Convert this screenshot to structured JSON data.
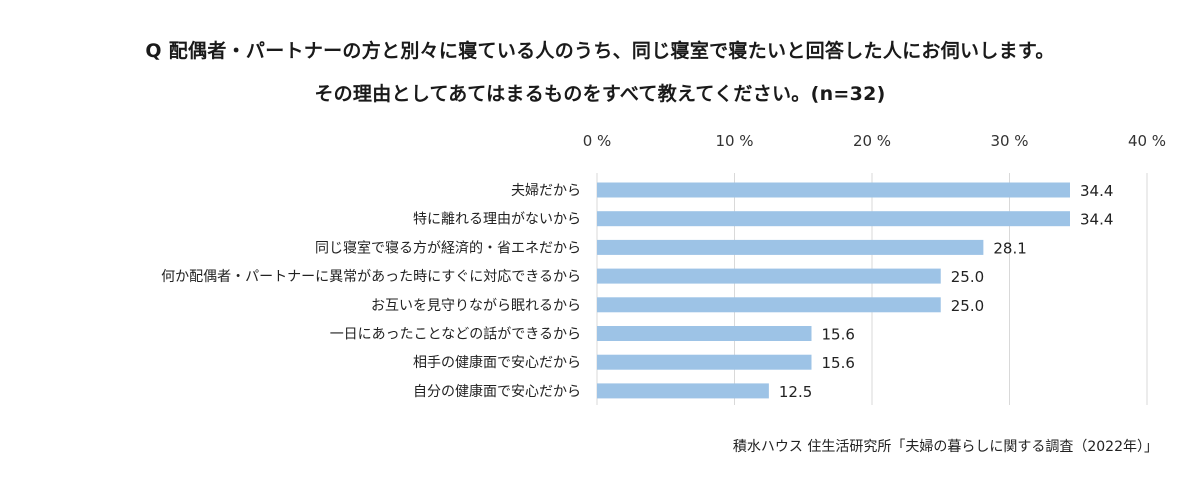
{
  "title": {
    "line1": "Q 配偶者・パートナーの方と別々に寝ている人のうち、同じ寝室で寝たいと回答した人にお伺いします。",
    "line2": "その理由としてあてはまるものをすべて教えてください。(n=32)"
  },
  "source": "積水ハウス 住生活研究所「夫婦の暮らしに関する調査（2022年）」",
  "chart_data": {
    "type": "bar",
    "orientation": "horizontal",
    "categories": [
      "夫婦だから",
      "特に離れる理由がないから",
      "同じ寝室で寝る方が経済的・省エネだから",
      "何か配偶者・パートナーに異常があった時にすぐに対応できるから",
      "お互いを見守りながら眠れるから",
      "一日にあったことなどの話ができるから",
      "相手の健康面で安心だから",
      "自分の健康面で安心だから"
    ],
    "values": [
      34.4,
      34.4,
      28.1,
      25.0,
      25.0,
      15.6,
      15.6,
      12.5
    ],
    "value_labels": [
      "34.4",
      "34.4",
      "28.1",
      "25.0",
      "25.0",
      "15.6",
      "15.6",
      "12.5"
    ],
    "xlim": [
      0,
      40
    ],
    "ticks": [
      0,
      10,
      20,
      30,
      40
    ],
    "tick_labels": [
      "0 %",
      "10 %",
      "20 %",
      "30 %",
      "40 %"
    ],
    "xlabel": "",
    "ylabel": "",
    "grid": true,
    "legend": "none",
    "bar_color": "#9dc3e6",
    "grid_color": "#d9d9d9"
  }
}
